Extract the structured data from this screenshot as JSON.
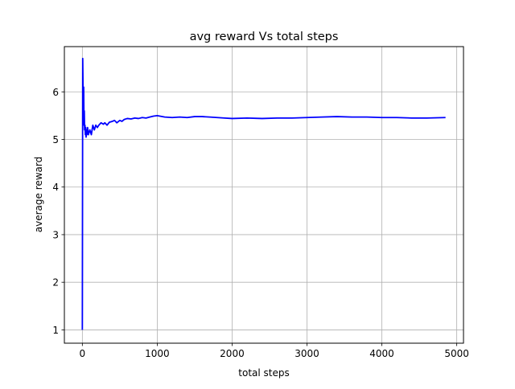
{
  "chart_data": {
    "type": "line",
    "title": "avg reward Vs total steps",
    "xlabel": "total steps",
    "ylabel": "average reward",
    "xlim": [
      -240,
      5090
    ],
    "ylim": [
      0.72,
      6.95
    ],
    "xticks": [
      0,
      1000,
      2000,
      3000,
      4000,
      5000
    ],
    "yticks": [
      1,
      2,
      3,
      4,
      5,
      6
    ],
    "xtick_labels": [
      "0",
      "1000",
      "2000",
      "3000",
      "4000",
      "5000"
    ],
    "ytick_labels": [
      "1",
      "2",
      "3",
      "4",
      "5",
      "6"
    ],
    "grid": true,
    "series": [
      {
        "name": "avg reward",
        "color": "#0000ff",
        "x": [
          0,
          5,
          10,
          15,
          18,
          22,
          26,
          30,
          35,
          40,
          45,
          50,
          55,
          60,
          70,
          80,
          90,
          100,
          120,
          140,
          160,
          180,
          200,
          220,
          250,
          280,
          300,
          330,
          360,
          400,
          430,
          460,
          500,
          530,
          560,
          600,
          650,
          700,
          750,
          800,
          850,
          900,
          950,
          1000,
          1100,
          1200,
          1300,
          1400,
          1500,
          1600,
          1700,
          1800,
          1900,
          2000,
          2200,
          2400,
          2600,
          2800,
          3000,
          3200,
          3400,
          3600,
          3800,
          4000,
          4200,
          4400,
          4600,
          4850
        ],
        "values": [
          1.0,
          6.7,
          6.0,
          5.9,
          6.1,
          5.3,
          5.6,
          5.2,
          5.3,
          5.1,
          5.25,
          5.05,
          5.2,
          5.1,
          5.25,
          5.1,
          5.15,
          5.2,
          5.1,
          5.3,
          5.2,
          5.3,
          5.25,
          5.3,
          5.35,
          5.32,
          5.35,
          5.3,
          5.36,
          5.38,
          5.4,
          5.35,
          5.4,
          5.38,
          5.42,
          5.44,
          5.43,
          5.45,
          5.44,
          5.46,
          5.45,
          5.47,
          5.49,
          5.5,
          5.47,
          5.46,
          5.47,
          5.46,
          5.48,
          5.48,
          5.47,
          5.46,
          5.45,
          5.44,
          5.45,
          5.44,
          5.45,
          5.45,
          5.46,
          5.47,
          5.48,
          5.47,
          5.47,
          5.46,
          5.46,
          5.45,
          5.45,
          5.46
        ]
      }
    ]
  }
}
